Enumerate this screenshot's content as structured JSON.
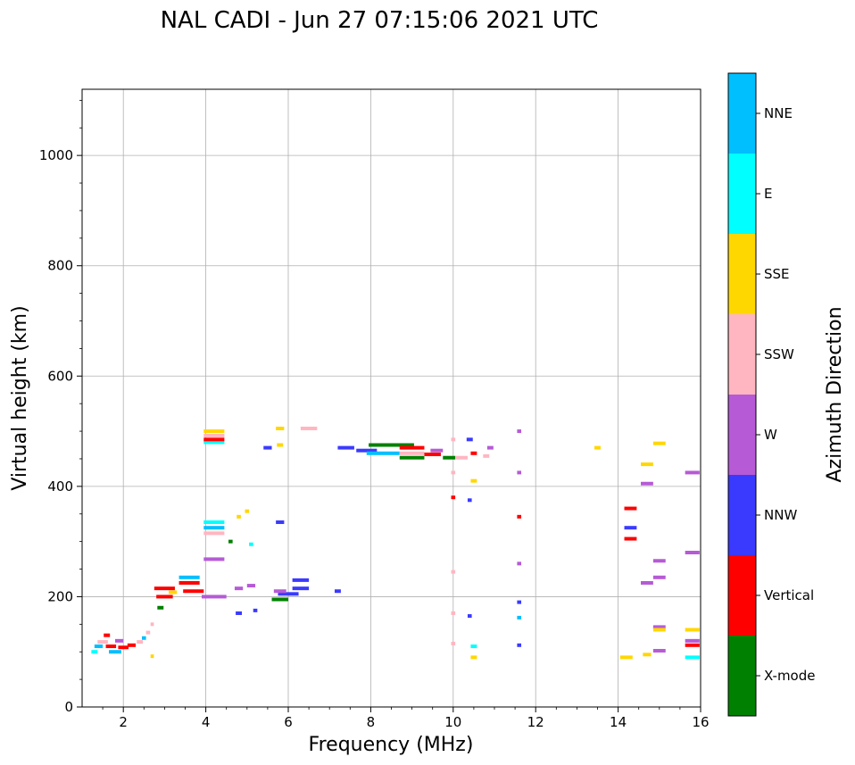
{
  "chart_data": {
    "type": "scatter",
    "title": "NAL CADI - Jun 27 07:15:06 2021 UTC",
    "xlabel": "Frequency (MHz)",
    "ylabel": "Virtual height (km)",
    "xlim": [
      1,
      16
    ],
    "ylim": [
      0,
      1120
    ],
    "xticks": [
      2,
      4,
      6,
      8,
      10,
      12,
      14,
      16
    ],
    "yticks": [
      0,
      200,
      400,
      600,
      800,
      1000
    ],
    "grid": true,
    "colorbar": {
      "title": "Azimuth Direction",
      "categories": [
        {
          "label": "X-mode",
          "color": "#008000"
        },
        {
          "label": "Vertical",
          "color": "#ff0000"
        },
        {
          "label": "NNW",
          "color": "#3a3aff"
        },
        {
          "label": "W",
          "color": "#b65ad6"
        },
        {
          "label": "SSW",
          "color": "#ffb6c1"
        },
        {
          "label": "SSE",
          "color": "#ffd700"
        },
        {
          "label": "E",
          "color": "#00ffff"
        },
        {
          "label": "NNE",
          "color": "#00bfff"
        }
      ]
    },
    "points": [
      {
        "f": 1.3,
        "h": 100,
        "w": 0.15,
        "dir": "E"
      },
      {
        "f": 1.4,
        "h": 110,
        "w": 0.2,
        "dir": "NNE"
      },
      {
        "f": 1.5,
        "h": 118,
        "w": 0.25,
        "dir": "SSW"
      },
      {
        "f": 1.6,
        "h": 130,
        "w": 0.15,
        "dir": "Vertical"
      },
      {
        "f": 1.7,
        "h": 110,
        "w": 0.25,
        "dir": "Vertical"
      },
      {
        "f": 1.8,
        "h": 100,
        "w": 0.3,
        "dir": "NNE"
      },
      {
        "f": 1.9,
        "h": 120,
        "w": 0.2,
        "dir": "W"
      },
      {
        "f": 2.0,
        "h": 108,
        "w": 0.25,
        "dir": "Vertical"
      },
      {
        "f": 2.2,
        "h": 112,
        "w": 0.2,
        "dir": "Vertical"
      },
      {
        "f": 2.4,
        "h": 118,
        "w": 0.15,
        "dir": "SSW"
      },
      {
        "f": 2.5,
        "h": 125,
        "w": 0.1,
        "dir": "NNE"
      },
      {
        "f": 2.6,
        "h": 135,
        "w": 0.1,
        "dir": "SSW"
      },
      {
        "f": 2.7,
        "h": 150,
        "w": 0.08,
        "dir": "SSW"
      },
      {
        "f": 2.7,
        "h": 92,
        "w": 0.08,
        "dir": "SSE"
      },
      {
        "f": 2.9,
        "h": 180,
        "w": 0.15,
        "dir": "X-mode"
      },
      {
        "f": 3.0,
        "h": 200,
        "w": 0.4,
        "dir": "Vertical"
      },
      {
        "f": 3.0,
        "h": 215,
        "w": 0.5,
        "dir": "Vertical"
      },
      {
        "f": 3.2,
        "h": 208,
        "w": 0.2,
        "dir": "SSE"
      },
      {
        "f": 3.6,
        "h": 235,
        "w": 0.5,
        "dir": "NNE"
      },
      {
        "f": 3.6,
        "h": 225,
        "w": 0.5,
        "dir": "Vertical"
      },
      {
        "f": 3.7,
        "h": 210,
        "w": 0.5,
        "dir": "Vertical"
      },
      {
        "f": 4.2,
        "h": 200,
        "w": 0.6,
        "dir": "W"
      },
      {
        "f": 4.2,
        "h": 268,
        "w": 0.5,
        "dir": "W"
      },
      {
        "f": 4.2,
        "h": 315,
        "w": 0.5,
        "dir": "SSW"
      },
      {
        "f": 4.2,
        "h": 325,
        "w": 0.5,
        "dir": "NNE"
      },
      {
        "f": 4.2,
        "h": 335,
        "w": 0.5,
        "dir": "E"
      },
      {
        "f": 4.2,
        "h": 480,
        "w": 0.5,
        "dir": "E"
      },
      {
        "f": 4.2,
        "h": 485,
        "w": 0.5,
        "dir": "Vertical"
      },
      {
        "f": 4.2,
        "h": 492,
        "w": 0.5,
        "dir": "SSW"
      },
      {
        "f": 4.2,
        "h": 500,
        "w": 0.5,
        "dir": "SSE"
      },
      {
        "f": 4.6,
        "h": 300,
        "w": 0.1,
        "dir": "X-mode"
      },
      {
        "f": 4.8,
        "h": 345,
        "w": 0.1,
        "dir": "SSE"
      },
      {
        "f": 5.0,
        "h": 355,
        "w": 0.1,
        "dir": "SSE"
      },
      {
        "f": 5.1,
        "h": 295,
        "w": 0.1,
        "dir": "E"
      },
      {
        "f": 4.8,
        "h": 215,
        "w": 0.2,
        "dir": "W"
      },
      {
        "f": 5.1,
        "h": 220,
        "w": 0.2,
        "dir": "W"
      },
      {
        "f": 4.8,
        "h": 170,
        "w": 0.15,
        "dir": "NNW"
      },
      {
        "f": 5.2,
        "h": 175,
        "w": 0.1,
        "dir": "NNW"
      },
      {
        "f": 5.5,
        "h": 470,
        "w": 0.2,
        "dir": "NNW"
      },
      {
        "f": 5.8,
        "h": 475,
        "w": 0.15,
        "dir": "SSE"
      },
      {
        "f": 5.8,
        "h": 505,
        "w": 0.2,
        "dir": "SSE"
      },
      {
        "f": 5.8,
        "h": 335,
        "w": 0.2,
        "dir": "NNW"
      },
      {
        "f": 6.5,
        "h": 505,
        "w": 0.4,
        "dir": "SSW"
      },
      {
        "f": 5.8,
        "h": 195,
        "w": 0.4,
        "dir": "X-mode"
      },
      {
        "f": 6.0,
        "h": 205,
        "w": 0.5,
        "dir": "NNW"
      },
      {
        "f": 6.3,
        "h": 215,
        "w": 0.4,
        "dir": "NNW"
      },
      {
        "f": 6.3,
        "h": 230,
        "w": 0.4,
        "dir": "NNW"
      },
      {
        "f": 5.8,
        "h": 210,
        "w": 0.3,
        "dir": "W"
      },
      {
        "f": 7.2,
        "h": 210,
        "w": 0.15,
        "dir": "NNW"
      },
      {
        "f": 7.4,
        "h": 470,
        "w": 0.4,
        "dir": "NNW"
      },
      {
        "f": 7.9,
        "h": 465,
        "w": 0.5,
        "dir": "NNW"
      },
      {
        "f": 8.3,
        "h": 460,
        "w": 0.8,
        "dir": "NNE"
      },
      {
        "f": 8.5,
        "h": 475,
        "w": 1.1,
        "dir": "X-mode"
      },
      {
        "f": 9.0,
        "h": 470,
        "w": 0.6,
        "dir": "Vertical"
      },
      {
        "f": 9.0,
        "h": 460,
        "w": 0.6,
        "dir": "SSW"
      },
      {
        "f": 9.0,
        "h": 452,
        "w": 0.6,
        "dir": "X-mode"
      },
      {
        "f": 9.5,
        "h": 458,
        "w": 0.4,
        "dir": "Vertical"
      },
      {
        "f": 9.6,
        "h": 465,
        "w": 0.3,
        "dir": "W"
      },
      {
        "f": 9.9,
        "h": 452,
        "w": 0.3,
        "dir": "X-mode"
      },
      {
        "f": 10.2,
        "h": 452,
        "w": 0.3,
        "dir": "SSW"
      },
      {
        "f": 10.5,
        "h": 460,
        "w": 0.15,
        "dir": "Vertical"
      },
      {
        "f": 10.8,
        "h": 455,
        "w": 0.15,
        "dir": "SSW"
      },
      {
        "f": 10.9,
        "h": 470,
        "w": 0.15,
        "dir": "W"
      },
      {
        "f": 10.4,
        "h": 485,
        "w": 0.15,
        "dir": "NNW"
      },
      {
        "f": 10.0,
        "h": 485,
        "w": 0.1,
        "dir": "SSW"
      },
      {
        "f": 10.0,
        "h": 380,
        "w": 0.1,
        "dir": "Vertical"
      },
      {
        "f": 10.0,
        "h": 425,
        "w": 0.1,
        "dir": "SSW"
      },
      {
        "f": 10.0,
        "h": 245,
        "w": 0.1,
        "dir": "SSW"
      },
      {
        "f": 10.0,
        "h": 170,
        "w": 0.1,
        "dir": "SSW"
      },
      {
        "f": 10.0,
        "h": 115,
        "w": 0.1,
        "dir": "SSW"
      },
      {
        "f": 10.4,
        "h": 375,
        "w": 0.1,
        "dir": "NNW"
      },
      {
        "f": 10.5,
        "h": 410,
        "w": 0.15,
        "dir": "SSE"
      },
      {
        "f": 10.4,
        "h": 165,
        "w": 0.1,
        "dir": "NNW"
      },
      {
        "f": 10.5,
        "h": 110,
        "w": 0.15,
        "dir": "E"
      },
      {
        "f": 10.5,
        "h": 90,
        "w": 0.15,
        "dir": "SSE"
      },
      {
        "f": 11.6,
        "h": 500,
        "w": 0.1,
        "dir": "W"
      },
      {
        "f": 11.6,
        "h": 425,
        "w": 0.1,
        "dir": "W"
      },
      {
        "f": 11.6,
        "h": 345,
        "w": 0.1,
        "dir": "Vertical"
      },
      {
        "f": 11.6,
        "h": 260,
        "w": 0.1,
        "dir": "W"
      },
      {
        "f": 11.6,
        "h": 190,
        "w": 0.1,
        "dir": "NNW"
      },
      {
        "f": 11.6,
        "h": 162,
        "w": 0.1,
        "dir": "NNE"
      },
      {
        "f": 11.6,
        "h": 112,
        "w": 0.1,
        "dir": "NNW"
      },
      {
        "f": 13.5,
        "h": 470,
        "w": 0.15,
        "dir": "SSE"
      },
      {
        "f": 14.3,
        "h": 360,
        "w": 0.3,
        "dir": "Vertical"
      },
      {
        "f": 14.3,
        "h": 325,
        "w": 0.3,
        "dir": "NNW"
      },
      {
        "f": 14.3,
        "h": 305,
        "w": 0.3,
        "dir": "Vertical"
      },
      {
        "f": 14.2,
        "h": 90,
        "w": 0.3,
        "dir": "SSE"
      },
      {
        "f": 14.7,
        "h": 440,
        "w": 0.3,
        "dir": "SSE"
      },
      {
        "f": 14.7,
        "h": 405,
        "w": 0.3,
        "dir": "W"
      },
      {
        "f": 14.7,
        "h": 225,
        "w": 0.3,
        "dir": "W"
      },
      {
        "f": 14.7,
        "h": 95,
        "w": 0.2,
        "dir": "SSE"
      },
      {
        "f": 15.0,
        "h": 478,
        "w": 0.3,
        "dir": "SSE"
      },
      {
        "f": 15.0,
        "h": 265,
        "w": 0.3,
        "dir": "W"
      },
      {
        "f": 15.0,
        "h": 235,
        "w": 0.3,
        "dir": "W"
      },
      {
        "f": 15.0,
        "h": 145,
        "w": 0.3,
        "dir": "W"
      },
      {
        "f": 15.0,
        "h": 140,
        "w": 0.3,
        "dir": "SSE"
      },
      {
        "f": 15.0,
        "h": 102,
        "w": 0.3,
        "dir": "W"
      },
      {
        "f": 15.8,
        "h": 425,
        "w": 0.35,
        "dir": "W"
      },
      {
        "f": 15.8,
        "h": 280,
        "w": 0.35,
        "dir": "W"
      },
      {
        "f": 15.8,
        "h": 140,
        "w": 0.35,
        "dir": "SSE"
      },
      {
        "f": 15.8,
        "h": 120,
        "w": 0.35,
        "dir": "W"
      },
      {
        "f": 15.8,
        "h": 112,
        "w": 0.35,
        "dir": "Vertical"
      },
      {
        "f": 15.8,
        "h": 90,
        "w": 0.35,
        "dir": "E"
      }
    ]
  }
}
